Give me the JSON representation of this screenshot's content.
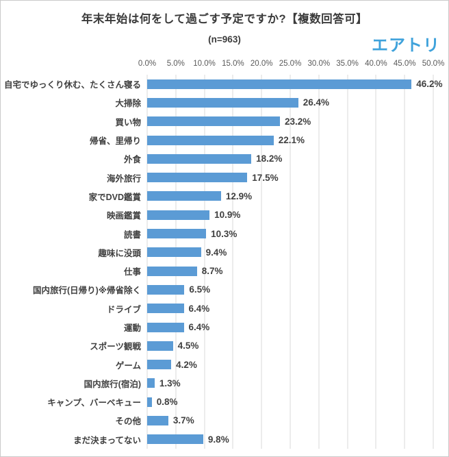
{
  "header": {
    "title": "年末年始は何をして過ごす予定ですか?【複数回答可】",
    "subtitle": "(n=963)",
    "logo_text": "エアトリ"
  },
  "colors": {
    "bar_blue": "#5B9BD5",
    "gridline_gray": "#D9D9D9",
    "logo_blue": "#3FA2DB",
    "text_dark": "#404040",
    "tick_gray": "#595959"
  },
  "chart_data": {
    "type": "bar",
    "orientation": "horizontal",
    "title": "年末年始は何をして過ごす予定ですか?【複数回答可】",
    "sample_size_label": "(n=963)",
    "xlabel": "",
    "ylabel": "",
    "xlim": [
      0,
      50
    ],
    "grid": true,
    "axis_position": "top",
    "x_ticks": [
      "0.0%",
      "5.0%",
      "10.0%",
      "15.0%",
      "20.0%",
      "25.0%",
      "30.0%",
      "35.0%",
      "40.0%",
      "45.0%",
      "50.0%"
    ],
    "categories": [
      "自宅でゆっくり休む、たくさん寝る",
      "大掃除",
      "買い物",
      "帰省、里帰り",
      "外食",
      "海外旅行",
      "家でDVD鑑賞",
      "映画鑑賞",
      "読書",
      "趣味に没頭",
      "仕事",
      "国内旅行(日帰り)※帰省除く",
      "ドライブ",
      "運動",
      "スポーツ観戦",
      "ゲーム",
      "国内旅行(宿泊)",
      "キャンプ、バーベキュー",
      "その他",
      "まだ決まってない"
    ],
    "values": [
      46.2,
      26.4,
      23.2,
      22.1,
      18.2,
      17.5,
      12.9,
      10.9,
      10.3,
      9.4,
      8.7,
      6.5,
      6.4,
      6.4,
      4.5,
      4.2,
      1.3,
      0.8,
      3.7,
      9.8
    ],
    "value_labels": [
      "46.2%",
      "26.4%",
      "23.2%",
      "22.1%",
      "18.2%",
      "17.5%",
      "12.9%",
      "10.9%",
      "10.3%",
      "9.4%",
      "8.7%",
      "6.5%",
      "6.4%",
      "6.4%",
      "4.5%",
      "4.2%",
      "1.3%",
      "0.8%",
      "3.7%",
      "9.8%"
    ],
    "bar_color": "#5B9BD5",
    "gridline_color": "#D9D9D9"
  }
}
